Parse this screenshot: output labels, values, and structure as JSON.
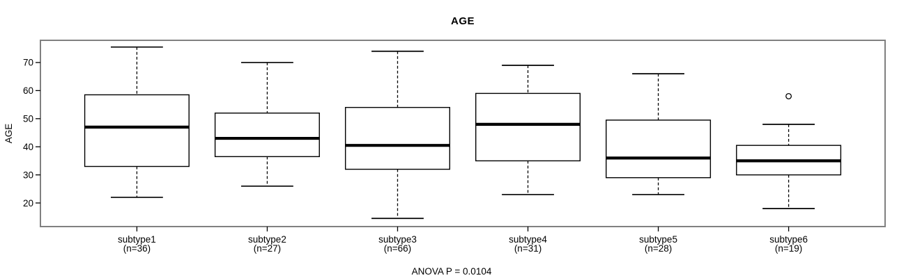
{
  "chart_data": {
    "type": "boxplot",
    "title": "AGE",
    "ylabel": "AGE",
    "annotation": "ANOVA P = 0.0104",
    "grid": false,
    "legend": "none",
    "ylim": [
      11.6,
      77.9
    ],
    "yticks": [
      20,
      30,
      40,
      50,
      60,
      70
    ],
    "groups": [
      {
        "label": "subtype1",
        "sublabel": "(n=36)",
        "n": 36,
        "whisker_low": 22,
        "q1": 33,
        "median": 47,
        "q3": 58.5,
        "whisker_high": 75.5,
        "outliers": []
      },
      {
        "label": "subtype2",
        "sublabel": "(n=27)",
        "n": 27,
        "whisker_low": 26,
        "q1": 36.5,
        "median": 43,
        "q3": 52,
        "whisker_high": 70,
        "outliers": []
      },
      {
        "label": "subtype3",
        "sublabel": "(n=66)",
        "n": 66,
        "whisker_low": 14.5,
        "q1": 32,
        "median": 40.5,
        "q3": 54,
        "whisker_high": 74,
        "outliers": []
      },
      {
        "label": "subtype4",
        "sublabel": "(n=31)",
        "n": 31,
        "whisker_low": 23,
        "q1": 35,
        "median": 48,
        "q3": 59,
        "whisker_high": 69,
        "outliers": []
      },
      {
        "label": "subtype5",
        "sublabel": "(n=28)",
        "n": 28,
        "whisker_low": 23,
        "q1": 29,
        "median": 36,
        "q3": 49.5,
        "whisker_high": 66,
        "outliers": []
      },
      {
        "label": "subtype6",
        "sublabel": "(n=19)",
        "n": 19,
        "whisker_low": 18,
        "q1": 30,
        "median": 35,
        "q3": 40.5,
        "whisker_high": 48,
        "outliers": [
          58
        ]
      }
    ],
    "colors": {
      "frame": "#808080",
      "line": "#000000",
      "box_fill": "#ffffff",
      "text": "#000000",
      "background": "#ffffff"
    }
  }
}
